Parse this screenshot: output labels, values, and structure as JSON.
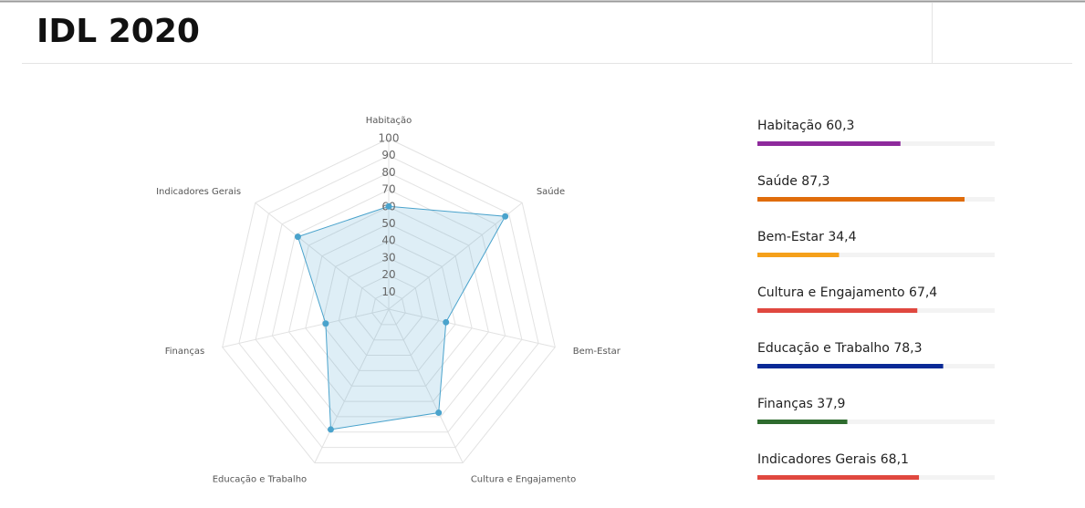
{
  "header": {
    "title": "IDL 2020"
  },
  "chart_data": [
    {
      "type": "radar",
      "categories": [
        "Habitação",
        "Saúde",
        "Bem-Estar",
        "Cultura e Engajamento",
        "Educação e Trabalho",
        "Finanças",
        "Indicadores Gerais"
      ],
      "values": [
        60.3,
        87.3,
        34.4,
        67.4,
        78.3,
        37.9,
        68.1
      ],
      "color": "#4aa3cc",
      "rlim": [
        0,
        100
      ],
      "rticks": [
        10,
        20,
        30,
        40,
        50,
        60,
        70,
        80,
        90,
        100
      ],
      "grid": true
    },
    {
      "type": "bar",
      "orientation": "horizontal",
      "categories": [
        "Habitação",
        "Saúde",
        "Bem-Estar",
        "Cultura e Engajamento",
        "Educação e Trabalho",
        "Finanças",
        "Indicadores Gerais"
      ],
      "values": [
        60.3,
        87.3,
        34.4,
        67.4,
        78.3,
        37.9,
        68.1
      ],
      "value_labels": [
        "60,3",
        "87,3",
        "34,4",
        "67,4",
        "78,3",
        "37,9",
        "68,1"
      ],
      "colors": [
        "#8e2a9c",
        "#e06c0a",
        "#f5a01a",
        "#e0483f",
        "#0a2a96",
        "#2e6b2e",
        "#e0483f"
      ],
      "xlim": [
        0,
        100
      ]
    }
  ]
}
